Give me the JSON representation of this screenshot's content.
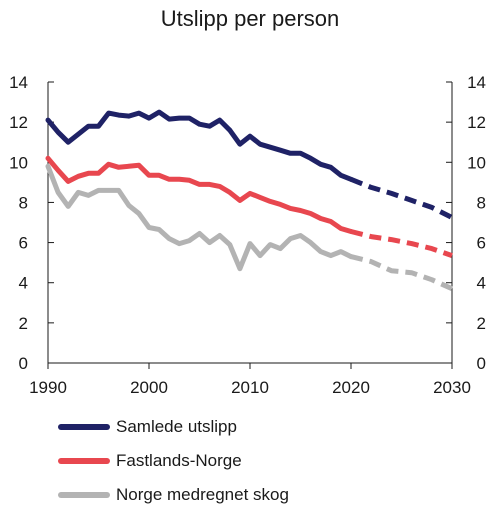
{
  "chart_data": {
    "type": "line",
    "title": "Utslipp per person",
    "xlim": [
      1990,
      2030
    ],
    "ylim": [
      0,
      14
    ],
    "x_ticks": [
      "1990",
      "2000",
      "2010",
      "2020",
      "2030"
    ],
    "y_ticks": [
      "0",
      "2",
      "4",
      "6",
      "8",
      "10",
      "12",
      "14"
    ],
    "projection_style": "dashed",
    "series": [
      {
        "name": "Samlede utslipp",
        "color": "#1f2266",
        "historical": [
          [
            1990,
            12.1
          ],
          [
            1991,
            11.5
          ],
          [
            1992,
            11.0
          ],
          [
            1993,
            11.4
          ],
          [
            1994,
            11.8
          ],
          [
            1995,
            11.8
          ],
          [
            1996,
            12.45
          ],
          [
            1997,
            12.35
          ],
          [
            1998,
            12.3
          ],
          [
            1999,
            12.45
          ],
          [
            2000,
            12.2
          ],
          [
            2001,
            12.5
          ],
          [
            2002,
            12.15
          ],
          [
            2003,
            12.2
          ],
          [
            2004,
            12.2
          ],
          [
            2005,
            11.9
          ],
          [
            2006,
            11.8
          ],
          [
            2007,
            12.1
          ],
          [
            2008,
            11.6
          ],
          [
            2009,
            10.9
          ],
          [
            2010,
            11.3
          ],
          [
            2011,
            10.9
          ],
          [
            2012,
            10.75
          ],
          [
            2013,
            10.6
          ],
          [
            2014,
            10.45
          ],
          [
            2015,
            10.45
          ],
          [
            2016,
            10.2
          ],
          [
            2017,
            9.9
          ],
          [
            2018,
            9.75
          ],
          [
            2019,
            9.35
          ],
          [
            2020,
            9.15
          ]
        ],
        "projection": [
          [
            2020,
            9.15
          ],
          [
            2022,
            8.75
          ],
          [
            2024,
            8.45
          ],
          [
            2026,
            8.1
          ],
          [
            2028,
            7.75
          ],
          [
            2030,
            7.25
          ]
        ]
      },
      {
        "name": "Fastlands-Norge",
        "color": "#e8474f",
        "historical": [
          [
            1990,
            10.2
          ],
          [
            1991,
            9.6
          ],
          [
            1992,
            9.05
          ],
          [
            1993,
            9.3
          ],
          [
            1994,
            9.45
          ],
          [
            1995,
            9.45
          ],
          [
            1996,
            9.9
          ],
          [
            1997,
            9.75
          ],
          [
            1998,
            9.8
          ],
          [
            1999,
            9.85
          ],
          [
            2000,
            9.35
          ],
          [
            2001,
            9.35
          ],
          [
            2002,
            9.15
          ],
          [
            2003,
            9.15
          ],
          [
            2004,
            9.1
          ],
          [
            2005,
            8.9
          ],
          [
            2006,
            8.9
          ],
          [
            2007,
            8.8
          ],
          [
            2008,
            8.5
          ],
          [
            2009,
            8.1
          ],
          [
            2010,
            8.45
          ],
          [
            2011,
            8.25
          ],
          [
            2012,
            8.05
          ],
          [
            2013,
            7.9
          ],
          [
            2014,
            7.7
          ],
          [
            2015,
            7.6
          ],
          [
            2016,
            7.45
          ],
          [
            2017,
            7.2
          ],
          [
            2018,
            7.05
          ],
          [
            2019,
            6.7
          ],
          [
            2020,
            6.55
          ]
        ],
        "projection": [
          [
            2020,
            6.55
          ],
          [
            2022,
            6.3
          ],
          [
            2024,
            6.15
          ],
          [
            2026,
            5.95
          ],
          [
            2028,
            5.7
          ],
          [
            2030,
            5.35
          ]
        ]
      },
      {
        "name": "Norge medregnet skog",
        "color": "#b3b3b3",
        "historical": [
          [
            1990,
            9.8
          ],
          [
            1991,
            8.5
          ],
          [
            1992,
            7.8
          ],
          [
            1993,
            8.5
          ],
          [
            1994,
            8.35
          ],
          [
            1995,
            8.6
          ],
          [
            1996,
            8.6
          ],
          [
            1997,
            8.6
          ],
          [
            1998,
            7.85
          ],
          [
            1999,
            7.45
          ],
          [
            2000,
            6.75
          ],
          [
            2001,
            6.65
          ],
          [
            2002,
            6.2
          ],
          [
            2003,
            5.95
          ],
          [
            2004,
            6.1
          ],
          [
            2005,
            6.45
          ],
          [
            2006,
            6.0
          ],
          [
            2007,
            6.35
          ],
          [
            2008,
            5.9
          ],
          [
            2009,
            4.7
          ],
          [
            2010,
            5.95
          ],
          [
            2011,
            5.35
          ],
          [
            2012,
            5.9
          ],
          [
            2013,
            5.7
          ],
          [
            2014,
            6.2
          ],
          [
            2015,
            6.35
          ],
          [
            2016,
            6.0
          ],
          [
            2017,
            5.55
          ],
          [
            2018,
            5.35
          ],
          [
            2019,
            5.55
          ],
          [
            2020,
            5.3
          ]
        ],
        "projection": [
          [
            2020,
            5.3
          ],
          [
            2022,
            5.05
          ],
          [
            2024,
            4.6
          ],
          [
            2026,
            4.5
          ],
          [
            2028,
            4.15
          ],
          [
            2030,
            3.7
          ]
        ]
      }
    ]
  }
}
